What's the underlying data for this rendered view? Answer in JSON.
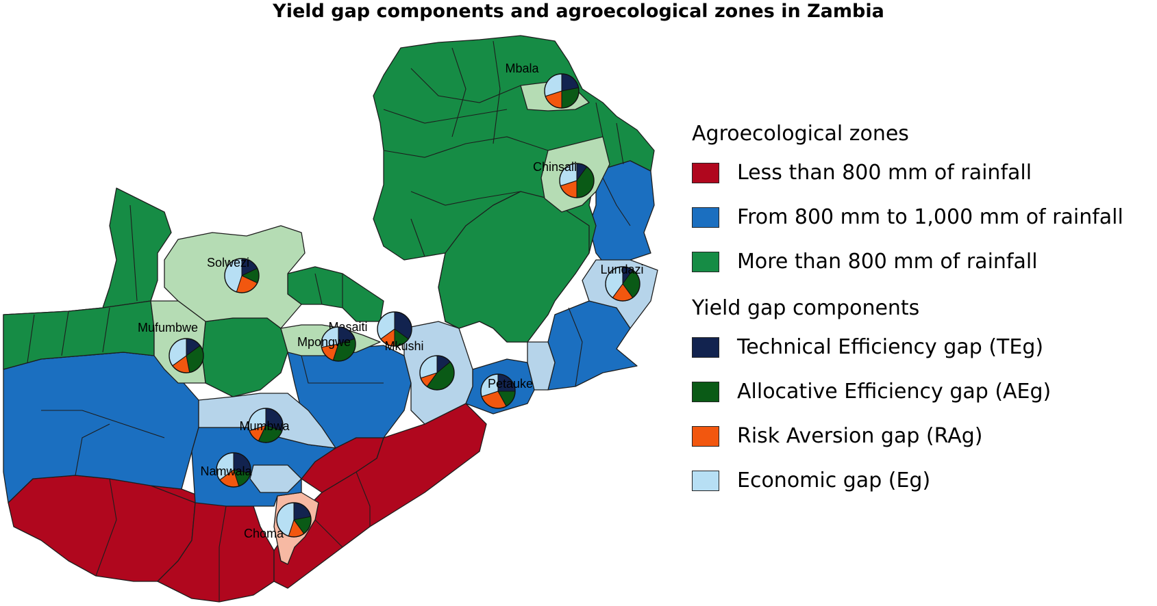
{
  "title": "Yield gap components and agroecological zones in Zambia",
  "colors": {
    "zone_dry": "#b0071e",
    "zone_dry_light": "#f7b9a3",
    "zone_mid": "#1b6fc0",
    "zone_mid_light": "#b6d4ea",
    "zone_wet": "#168c45",
    "zone_wet_light": "#b5dcb4",
    "teg": "#12234f",
    "aeg": "#0a5a16",
    "rag": "#f2570f",
    "eg": "#b7dff4"
  },
  "legend": {
    "zones_heading": "Agroecological zones",
    "zones": [
      {
        "label": "Less than 800 mm of rainfall",
        "color": "#b0071e"
      },
      {
        "label": "From 800 mm to 1,000 mm of rainfall",
        "color": "#1b6fc0"
      },
      {
        "label": "More than 800 mm of rainfall",
        "color": "#168c45"
      }
    ],
    "components_heading": "Yield gap components",
    "components": [
      {
        "label": "Technical Efficiency gap (TEg)",
        "color": "#12234f"
      },
      {
        "label": "Allocative Efficiency gap (AEg)",
        "color": "#0a5a16"
      },
      {
        "label": "Risk Aversion gap (RAg)",
        "color": "#f2570f"
      },
      {
        "label": "Economic gap (Eg)",
        "color": "#b7dff4"
      }
    ]
  },
  "sites": [
    {
      "name": "Mbala",
      "zone": "More than 800 mm of rainfall",
      "shares": [
        0.22,
        0.28,
        0.2,
        0.3
      ]
    },
    {
      "name": "Chinsali",
      "zone": "More than 800 mm of rainfall",
      "shares": [
        0.1,
        0.4,
        0.2,
        0.3
      ]
    },
    {
      "name": "Solwezi",
      "zone": "More than 800 mm of rainfall",
      "shares": [
        0.18,
        0.14,
        0.23,
        0.45
      ]
    },
    {
      "name": "Mufumbwe",
      "zone": "More than 800 mm of rainfall",
      "shares": [
        0.15,
        0.32,
        0.18,
        0.35
      ]
    },
    {
      "name": "Masaiti",
      "zone": "More than 800 mm of rainfall",
      "shares": [
        0.35,
        0.15,
        0.15,
        0.35
      ]
    },
    {
      "name": "Mpongwe",
      "zone": "More than 800 mm of rainfall",
      "shares": [
        0.2,
        0.35,
        0.17,
        0.28
      ]
    },
    {
      "name": "Lundazi",
      "zone": "From 800 mm to 1,000 mm of rainfall",
      "shares": [
        0.1,
        0.3,
        0.2,
        0.4
      ]
    },
    {
      "name": "Mkushi",
      "zone": "From 800 mm to 1,000 mm of rainfall",
      "shares": [
        0.14,
        0.46,
        0.1,
        0.3
      ]
    },
    {
      "name": "Petauke",
      "zone": "From 800 mm to 1,000 mm of rainfall",
      "shares": [
        0.25,
        0.17,
        0.28,
        0.3
      ]
    },
    {
      "name": "Mumbwa",
      "zone": "From 800 mm to 1,000 mm of rainfall",
      "shares": [
        0.3,
        0.27,
        0.13,
        0.3
      ]
    },
    {
      "name": "Namwala",
      "zone": "From 800 mm to 1,000 mm of rainfall",
      "shares": [
        0.28,
        0.17,
        0.2,
        0.35
      ]
    },
    {
      "name": "Choma",
      "zone": "Less than 800 mm of rainfall",
      "shares": [
        0.22,
        0.18,
        0.15,
        0.45
      ]
    }
  ]
}
